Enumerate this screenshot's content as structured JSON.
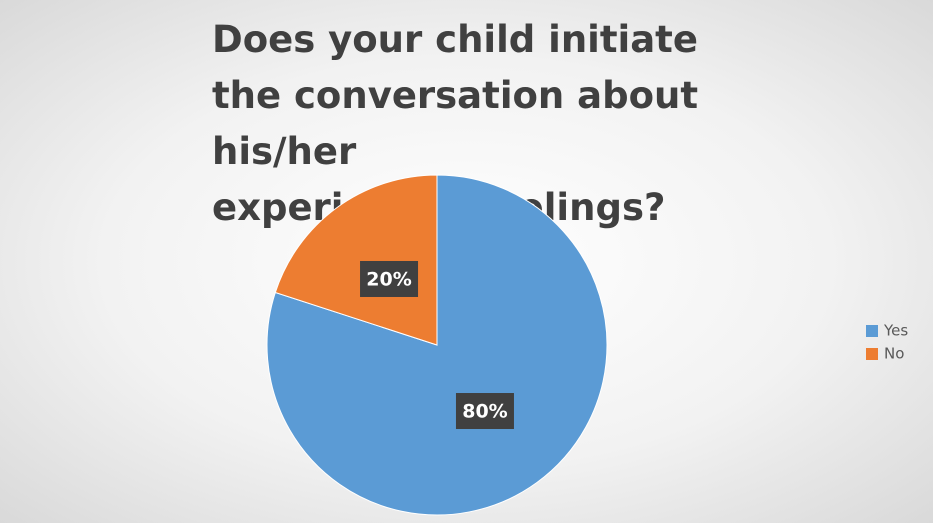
{
  "chart_data": {
    "type": "pie",
    "title": "Does your child initiate the conversation about his/her experiences/feelings?",
    "categories": [
      "Yes",
      "No"
    ],
    "values": [
      80,
      20
    ],
    "value_labels": [
      "80%",
      "20%"
    ],
    "colors": [
      "#5b9bd5",
      "#ed7d31"
    ],
    "legend": "right"
  }
}
